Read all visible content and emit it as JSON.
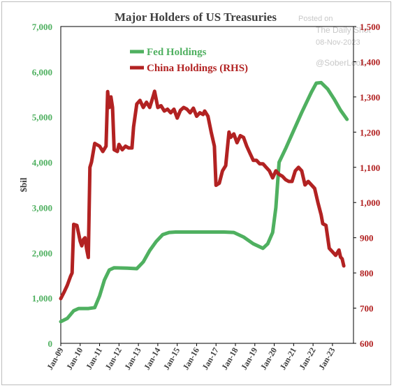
{
  "watermark": {
    "posted_on": "Posted on",
    "brand": "The Daily Shot",
    "date": "08-Nov-2023",
    "handle": "@SoberLook"
  },
  "chart_data": {
    "type": "line",
    "title": "Major Holders of US Treasuries",
    "ylabel": "$bil",
    "ylim": [
      0,
      7000
    ],
    "y2lim": [
      600,
      1500
    ],
    "yticks": [
      "0",
      "1,000",
      "2,000",
      "3,000",
      "4,000",
      "5,000",
      "6,000",
      "7,000"
    ],
    "y2ticks": [
      "600",
      "700",
      "800",
      "900",
      "1,000",
      "1,100",
      "1,200",
      "1,300",
      "1,400",
      "1,500"
    ],
    "xlim": [
      "2009-01",
      "2024-02"
    ],
    "xticks": [
      "Jan-09",
      "Jan-10",
      "Jan-11",
      "Jan-12",
      "Jan-13",
      "Jan-14",
      "Jan-15",
      "Jan-16",
      "Jan-17",
      "Jan-18",
      "Jan-19",
      "Jan-20",
      "Jan-21",
      "Jan-22",
      "Jan-23"
    ],
    "legend_position": "top-center",
    "series": [
      {
        "name": "Fed Holdings",
        "axis": "left",
        "color": "#4fb060",
        "points": [
          [
            "2009-01",
            480
          ],
          [
            "2009-05",
            550
          ],
          [
            "2009-09",
            720
          ],
          [
            "2009-12",
            770
          ],
          [
            "2010-06",
            770
          ],
          [
            "2010-10",
            790
          ],
          [
            "2011-01",
            1050
          ],
          [
            "2011-04",
            1400
          ],
          [
            "2011-07",
            1620
          ],
          [
            "2011-10",
            1670
          ],
          [
            "2012-06",
            1660
          ],
          [
            "2012-12",
            1650
          ],
          [
            "2013-04",
            1800
          ],
          [
            "2013-08",
            2050
          ],
          [
            "2013-12",
            2250
          ],
          [
            "2014-04",
            2400
          ],
          [
            "2014-08",
            2450
          ],
          [
            "2014-12",
            2460
          ],
          [
            "2015-06",
            2460
          ],
          [
            "2016-06",
            2460
          ],
          [
            "2017-06",
            2460
          ],
          [
            "2017-12",
            2450
          ],
          [
            "2018-06",
            2350
          ],
          [
            "2018-12",
            2200
          ],
          [
            "2019-06",
            2100
          ],
          [
            "2019-09",
            2200
          ],
          [
            "2019-12",
            2450
          ],
          [
            "2020-02",
            3000
          ],
          [
            "2020-04",
            4000
          ],
          [
            "2020-08",
            4300
          ],
          [
            "2021-01",
            4700
          ],
          [
            "2021-06",
            5100
          ],
          [
            "2021-12",
            5550
          ],
          [
            "2022-03",
            5750
          ],
          [
            "2022-06",
            5760
          ],
          [
            "2022-10",
            5620
          ],
          [
            "2023-02",
            5400
          ],
          [
            "2023-06",
            5150
          ],
          [
            "2023-09",
            5000
          ],
          [
            "2023-10",
            4950
          ]
        ]
      },
      {
        "name": "China Holdings (RHS)",
        "axis": "right",
        "color": "#b22222",
        "points": [
          [
            "2009-01",
            727
          ],
          [
            "2009-03",
            745
          ],
          [
            "2009-05",
            765
          ],
          [
            "2009-07",
            790
          ],
          [
            "2009-08",
            800
          ],
          [
            "2009-09",
            938
          ],
          [
            "2009-11",
            935
          ],
          [
            "2010-01",
            890
          ],
          [
            "2010-02",
            877
          ],
          [
            "2010-03",
            895
          ],
          [
            "2010-04",
            900
          ],
          [
            "2010-05",
            868
          ],
          [
            "2010-06",
            844
          ],
          [
            "2010-07",
            1100
          ],
          [
            "2010-08",
            1115
          ],
          [
            "2010-10",
            1168
          ],
          [
            "2011-01",
            1160
          ],
          [
            "2011-03",
            1145
          ],
          [
            "2011-05",
            1160
          ],
          [
            "2011-06",
            1315
          ],
          [
            "2011-07",
            1270
          ],
          [
            "2011-08",
            1300
          ],
          [
            "2011-09",
            1270
          ],
          [
            "2011-10",
            1150
          ],
          [
            "2011-12",
            1145
          ],
          [
            "2012-01",
            1165
          ],
          [
            "2012-03",
            1150
          ],
          [
            "2012-05",
            1160
          ],
          [
            "2012-07",
            1155
          ],
          [
            "2012-09",
            1155
          ],
          [
            "2012-10",
            1215
          ],
          [
            "2012-12",
            1280
          ],
          [
            "2013-02",
            1290
          ],
          [
            "2013-04",
            1270
          ],
          [
            "2013-06",
            1285
          ],
          [
            "2013-08",
            1270
          ],
          [
            "2013-10",
            1300
          ],
          [
            "2013-11",
            1316
          ],
          [
            "2014-01",
            1270
          ],
          [
            "2014-03",
            1275
          ],
          [
            "2014-05",
            1260
          ],
          [
            "2014-07",
            1265
          ],
          [
            "2014-09",
            1255
          ],
          [
            "2014-11",
            1265
          ],
          [
            "2015-01",
            1240
          ],
          [
            "2015-03",
            1262
          ],
          [
            "2015-05",
            1270
          ],
          [
            "2015-07",
            1265
          ],
          [
            "2015-09",
            1255
          ],
          [
            "2015-11",
            1268
          ],
          [
            "2016-01",
            1245
          ],
          [
            "2016-03",
            1255
          ],
          [
            "2016-05",
            1250
          ],
          [
            "2016-06",
            1260
          ],
          [
            "2016-08",
            1245
          ],
          [
            "2016-10",
            1200
          ],
          [
            "2016-12",
            1160
          ],
          [
            "2017-01",
            1049
          ],
          [
            "2017-03",
            1055
          ],
          [
            "2017-05",
            1090
          ],
          [
            "2017-07",
            1105
          ],
          [
            "2017-09",
            1200
          ],
          [
            "2017-10",
            1185
          ],
          [
            "2017-12",
            1195
          ],
          [
            "2018-02",
            1170
          ],
          [
            "2018-04",
            1190
          ],
          [
            "2018-06",
            1185
          ],
          [
            "2018-08",
            1160
          ],
          [
            "2018-10",
            1140
          ],
          [
            "2018-12",
            1120
          ],
          [
            "2019-02",
            1120
          ],
          [
            "2019-04",
            1110
          ],
          [
            "2019-06",
            1110
          ],
          [
            "2019-08",
            1100
          ],
          [
            "2019-10",
            1090
          ],
          [
            "2019-12",
            1070
          ],
          [
            "2020-02",
            1090
          ],
          [
            "2020-04",
            1080
          ],
          [
            "2020-06",
            1075
          ],
          [
            "2020-08",
            1065
          ],
          [
            "2020-10",
            1060
          ],
          [
            "2020-12",
            1060
          ],
          [
            "2021-02",
            1090
          ],
          [
            "2021-04",
            1100
          ],
          [
            "2021-06",
            1090
          ],
          [
            "2021-08",
            1050
          ],
          [
            "2021-10",
            1060
          ],
          [
            "2021-12",
            1050
          ],
          [
            "2022-02",
            1040
          ],
          [
            "2022-04",
            1000
          ],
          [
            "2022-06",
            965
          ],
          [
            "2022-07",
            940
          ],
          [
            "2022-09",
            935
          ],
          [
            "2022-11",
            870
          ],
          [
            "2023-01",
            860
          ],
          [
            "2023-03",
            850
          ],
          [
            "2023-05",
            865
          ],
          [
            "2023-06",
            845
          ],
          [
            "2023-07",
            840
          ],
          [
            "2023-08",
            820
          ]
        ]
      }
    ]
  }
}
